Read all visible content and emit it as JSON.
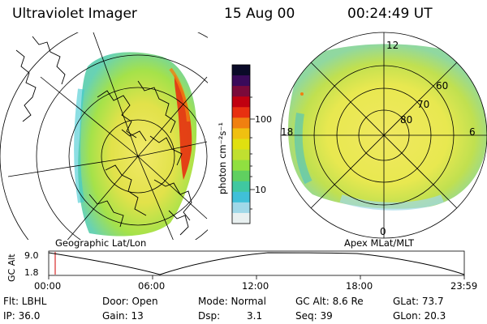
{
  "header": {
    "title": "Ultraviolet Imager",
    "date": "15 Aug 00",
    "time": "00:24:49 UT"
  },
  "colorbar": {
    "unit_label": "photon cm⁻²s⁻¹",
    "ticks": [
      "100",
      "10"
    ],
    "colors": [
      "#0a0a28",
      "#3a0a5a",
      "#7a0a3a",
      "#c00010",
      "#e83010",
      "#f08010",
      "#f0c010",
      "#e0e010",
      "#c0e030",
      "#90e040",
      "#60d060",
      "#40c8a0",
      "#40c0d8",
      "#a0d8e8",
      "#e8f0f0"
    ]
  },
  "left_plot": {
    "label": "Geographic Lat/Lon"
  },
  "right_plot": {
    "label": "Apex MLat/MLT",
    "mlt_labels": [
      "12",
      "18",
      "6",
      "0"
    ],
    "lat_labels": [
      "60",
      "70",
      "80"
    ]
  },
  "altitude_plot": {
    "axis_label": "GC Alt",
    "y_ticks": [
      "9.0",
      "1.8"
    ],
    "x_ticks": [
      "00:00",
      "06:00",
      "12:00",
      "18:00",
      "23:59"
    ]
  },
  "status": {
    "flt": "Flt: LBHL",
    "door": "Door: Open",
    "mode": "Mode: Normal",
    "gc_alt": "GC Alt: 8.6 Re",
    "glat": "GLat: 73.7",
    "ip": "IP: 36.0",
    "gain": "Gain: 13",
    "dsp_label": "Dsp:",
    "dsp_value": "3.1",
    "seq": "Seq: 39",
    "glon": "GLon: 20.3"
  }
}
